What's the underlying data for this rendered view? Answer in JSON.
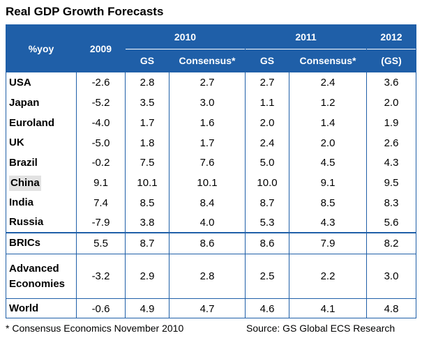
{
  "title": "Real GDP Growth Forecasts",
  "header": {
    "row_label": "%yoy",
    "col_2009": "2009",
    "group_2010": "2010",
    "group_2011": "2011",
    "col_2012": "2012",
    "gs": "GS",
    "consensus": "Consensus*",
    "gs_paren": "(GS)"
  },
  "chart_data": {
    "type": "table",
    "title": "Real GDP Growth Forecasts",
    "unit": "%yoy",
    "columns": [
      "2009",
      "2010 GS",
      "2010 Consensus*",
      "2011 GS",
      "2011 Consensus*",
      "2012 (GS)"
    ],
    "rows": [
      {
        "label": "USA",
        "values": [
          "-2.6",
          "2.8",
          "2.7",
          "2.7",
          "2.4",
          "3.6"
        ]
      },
      {
        "label": "Japan",
        "values": [
          "-5.2",
          "3.5",
          "3.0",
          "1.1",
          "1.2",
          "2.0"
        ]
      },
      {
        "label": "Euroland",
        "values": [
          "-4.0",
          "1.7",
          "1.6",
          "2.0",
          "1.4",
          "1.9"
        ]
      },
      {
        "label": "UK",
        "values": [
          "-5.0",
          "1.8",
          "1.7",
          "2.4",
          "2.0",
          "2.6"
        ]
      },
      {
        "label": "Brazil",
        "values": [
          "-0.2",
          "7.5",
          "7.6",
          "5.0",
          "4.5",
          "4.3"
        ]
      },
      {
        "label": "China",
        "values": [
          "9.1",
          "10.1",
          "10.1",
          "10.0",
          "9.1",
          "9.5"
        ]
      },
      {
        "label": "India",
        "values": [
          "7.4",
          "8.5",
          "8.4",
          "8.7",
          "8.5",
          "8.3"
        ]
      },
      {
        "label": "Russia",
        "values": [
          "-7.9",
          "3.8",
          "4.0",
          "5.3",
          "4.3",
          "5.6"
        ]
      },
      {
        "label": "BRICs",
        "values": [
          "5.5",
          "8.7",
          "8.6",
          "8.6",
          "7.9",
          "8.2"
        ]
      },
      {
        "label": "Advanced Economies",
        "label_lines": [
          "Advanced",
          "Economies"
        ],
        "values": [
          "-3.2",
          "2.9",
          "2.8",
          "2.5",
          "2.2",
          "3.0"
        ]
      },
      {
        "label": "World",
        "values": [
          "-0.6",
          "4.9",
          "4.7",
          "4.6",
          "4.1",
          "4.8"
        ]
      }
    ]
  },
  "footnote_left": "* Consensus Economics November 2010",
  "footnote_right": "Source: GS Global ECS Research"
}
